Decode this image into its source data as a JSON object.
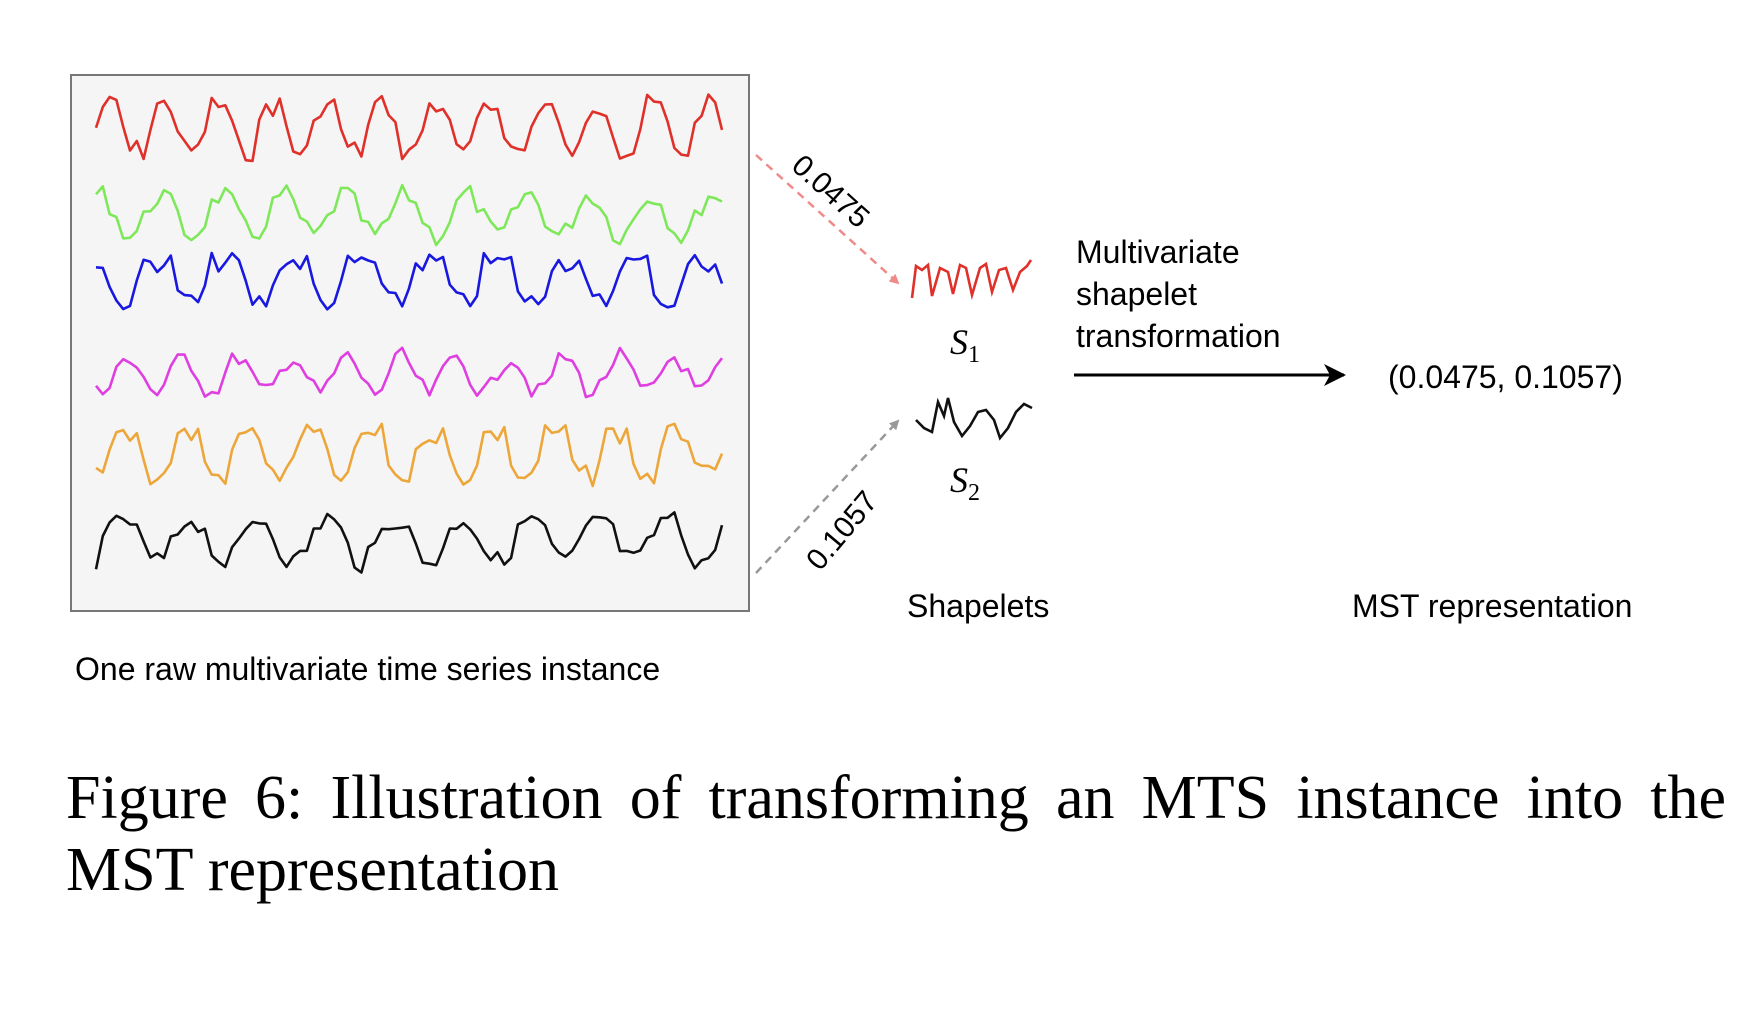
{
  "series_colors": [
    "#e0302a",
    "#7ee85a",
    "#1818e0",
    "#df3fe0",
    "#eda63a",
    "#111111"
  ],
  "shapelets": {
    "s1": {
      "label": "S",
      "sub": "1",
      "color": "#e0302a",
      "distance": "0.0475"
    },
    "s2": {
      "label": "S",
      "sub": "2",
      "color": "#111111",
      "distance": "0.1057"
    }
  },
  "labels": {
    "instance": "One raw multivariate time series instance",
    "shapelets": "Shapelets",
    "transform_line1": "Multivariate",
    "transform_line2": "shapelet",
    "transform_line3": "transformation",
    "representation": "(0.0475, 0.1057)",
    "mst": "MST representation"
  },
  "caption": "Figure 6: Illustration of transforming an MTS instance into the MST representation"
}
